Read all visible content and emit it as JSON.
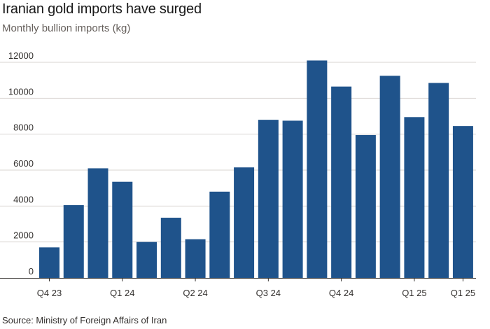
{
  "header": {
    "title": "Iranian gold imports have surged",
    "subtitle": "Monthly bullion imports (kg)"
  },
  "footer": {
    "source": "Source: Ministry of Foreign Affairs of Iran"
  },
  "colors": {
    "bar": "#1f538b",
    "grid": "#d9d5d2",
    "baseline": "#33302e",
    "text": "#33302e"
  },
  "chart_data": {
    "type": "bar",
    "title": "Iranian gold imports have surged",
    "subtitle": "Monthly bullion imports (kg)",
    "xlabel": "",
    "ylabel": "",
    "ylim": [
      0,
      12000
    ],
    "yticks": [
      0,
      2000,
      4000,
      6000,
      8000,
      10000,
      12000
    ],
    "grid": true,
    "values": [
      1700,
      4050,
      6100,
      5350,
      2000,
      3350,
      2150,
      4800,
      6150,
      8800,
      8750,
      12100,
      10650,
      7950,
      11250,
      8950,
      10850,
      8450
    ],
    "xtick_labels": [
      {
        "label": "Q4 23",
        "index": 0
      },
      {
        "label": "Q1 24",
        "index": 3
      },
      {
        "label": "Q2 24",
        "index": 6
      },
      {
        "label": "Q3 24",
        "index": 9
      },
      {
        "label": "Q4 24",
        "index": 12
      },
      {
        "label": "Q1 25",
        "index": 15
      },
      {
        "label": "Q1 25",
        "index": 17
      }
    ]
  }
}
